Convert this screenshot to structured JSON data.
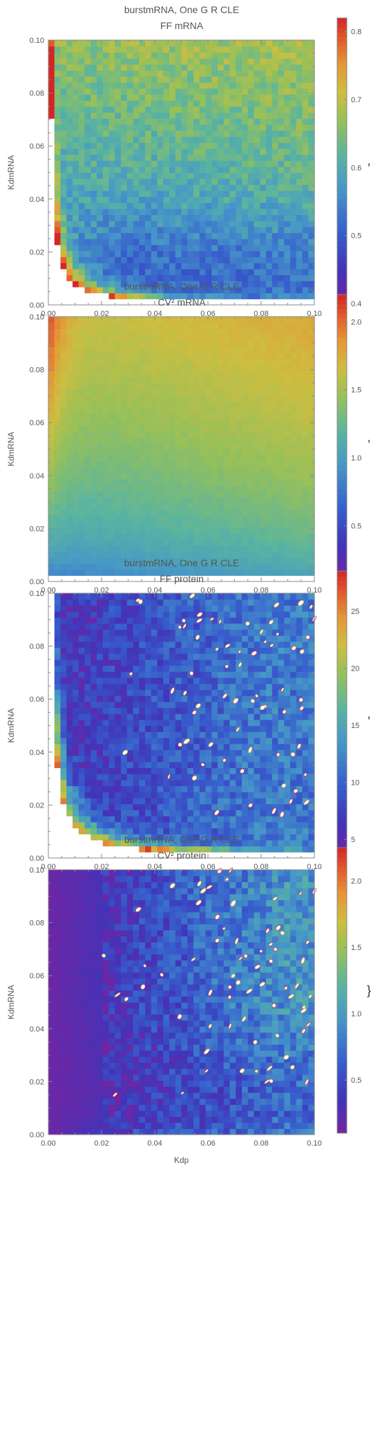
{
  "chart_data": [
    {
      "type": "heatmap",
      "title": "burstmRNA, One G R CLE",
      "subtitle": "FF mRNA",
      "xlabel": "Kdp",
      "ylabel": "KdmRNA",
      "xlim": [
        0.0,
        0.1
      ],
      "ylim": [
        0.0,
        0.1
      ],
      "x_ticks": [
        "0.00",
        "0.02",
        "0.04",
        "0.06",
        "0.08",
        "0.10"
      ],
      "y_ticks": [
        "0.00",
        "0.02",
        "0.04",
        "0.06",
        "0.08",
        "0.10"
      ],
      "colorbar": {
        "range": [
          0.4,
          0.82
        ],
        "ticks": [
          "0.4",
          "0.5",
          "0.6",
          "0.7",
          "0.8"
        ]
      },
      "grid": false,
      "trailing_mark": ","
    },
    {
      "type": "heatmap",
      "title": "burstmRNA, One G R CLE",
      "subtitle": "CV² mRNA",
      "xlabel": "Kdp",
      "ylabel": "KdmRNA",
      "xlim": [
        0.0,
        0.1
      ],
      "ylim": [
        0.0,
        0.1
      ],
      "x_ticks": [
        "0.00",
        "0.02",
        "0.04",
        "0.06",
        "0.08",
        "0.10"
      ],
      "y_ticks": [
        "0.00",
        "0.02",
        "0.04",
        "0.06",
        "0.08",
        "0.10"
      ],
      "colorbar": {
        "range": [
          0.1,
          2.2
        ],
        "ticks": [
          "0.5",
          "1.0",
          "1.5",
          "2.0"
        ]
      },
      "grid": false,
      "trailing_mark": ","
    },
    {
      "type": "heatmap",
      "title": "burstmRNA, One G R CLE",
      "subtitle": "FF protein",
      "xlabel": "Kdp",
      "ylabel": "KdmRNA",
      "xlim": [
        0.0,
        0.1
      ],
      "ylim": [
        0.0,
        0.1
      ],
      "x_ticks": [
        "0.00",
        "0.02",
        "0.04",
        "0.06",
        "0.08",
        "0.10"
      ],
      "y_ticks": [
        "0.00",
        "0.02",
        "0.04",
        "0.06",
        "0.08",
        "0.10"
      ],
      "colorbar": {
        "range": [
          3.5,
          28.5
        ],
        "ticks": [
          "5",
          "10",
          "15",
          "20",
          "25"
        ]
      },
      "grid": false,
      "trailing_mark": ","
    },
    {
      "type": "heatmap",
      "title": "burstmRNA, One G R CLE",
      "subtitle": "CV² protein",
      "xlabel": "Kdp",
      "ylabel": "KdmRNA",
      "xlim": [
        0.0,
        0.1
      ],
      "ylim": [
        0.0,
        0.1
      ],
      "x_ticks": [
        "0.00",
        "0.02",
        "0.04",
        "0.06",
        "0.08",
        "0.10"
      ],
      "y_ticks": [
        "0.00",
        "0.02",
        "0.04",
        "0.06",
        "0.08",
        "0.10"
      ],
      "colorbar": {
        "range": [
          0.1,
          2.25
        ],
        "ticks": [
          "0.5",
          "1.0",
          "1.5",
          "2.0"
        ]
      },
      "grid": false,
      "trailing_mark": "}"
    }
  ]
}
